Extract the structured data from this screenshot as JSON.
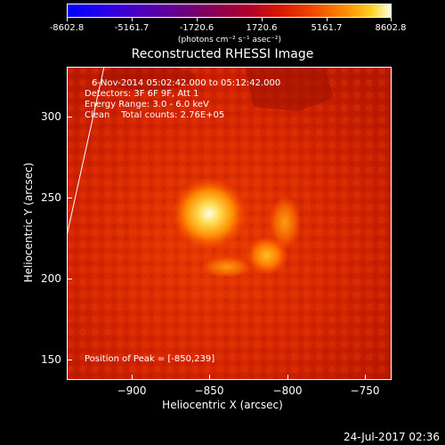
{
  "colorbar": {
    "ticks": [
      "-8602.8",
      "-5161.7",
      "-1720.6",
      "1720.6",
      "5161.7",
      "8602.8"
    ],
    "unit_label": "(photons cm⁻² s⁻¹ asec⁻²)",
    "range": [
      -8602.8,
      8602.8
    ]
  },
  "plot": {
    "title": "Reconstructed RHESSI Image",
    "info_lines": [
      "6-Nov-2014 05:02:42.000 to 05:12:42.000",
      "Detectors: 3F 6F 9F, Att 1",
      "Energy Range: 3.0 - 6.0 keV",
      "Clean    Total counts: 2.76E+05"
    ],
    "peak_text": "Position of Peak = [-850,239]",
    "xlabel": "Heliocentric X (arcsec)",
    "ylabel": "Heliocentric Y (arcsec)",
    "x_ticks": [
      "−900",
      "−850",
      "−800",
      "−750"
    ],
    "y_ticks": [
      "300",
      "250",
      "200",
      "150"
    ]
  },
  "footer": {
    "date": "24-Jul-2017 02:36"
  }
}
